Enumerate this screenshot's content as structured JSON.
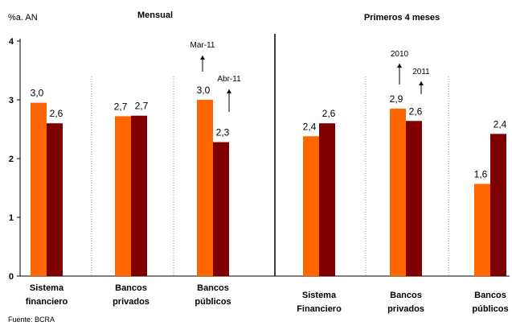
{
  "chart_data": {
    "type": "bar",
    "unit_label": "%a. AN",
    "source": "Fuente: BCRA",
    "ylim": [
      0,
      4
    ],
    "yticks": [
      "0",
      "1",
      "2",
      "3",
      "4"
    ],
    "colors": {
      "orange": "#ff6600",
      "dark": "#800000"
    },
    "panels": [
      {
        "title": "Mensual",
        "categories": [
          {
            "lines": [
              "Sistema",
              "financiero"
            ]
          },
          {
            "lines": [
              "Bancos",
              "privados"
            ]
          },
          {
            "lines": [
              "Bancos",
              "públicos"
            ]
          }
        ],
        "series": [
          {
            "name": "Mar-11",
            "values": [
              2.95,
              2.72,
              3.0
            ],
            "labels": [
              "3,0",
              "2,7",
              "3,0"
            ]
          },
          {
            "name": "Abr-11",
            "values": [
              2.6,
              2.73,
              2.28
            ],
            "labels": [
              "2,6",
              "2,7",
              "2,3"
            ]
          }
        ]
      },
      {
        "title": "Primeros 4 meses",
        "categories": [
          {
            "lines": [
              "Sistema",
              "Financiero"
            ]
          },
          {
            "lines": [
              "Bancos",
              "privados"
            ]
          },
          {
            "lines": [
              "Bancos",
              "públicos"
            ]
          }
        ],
        "series": [
          {
            "name": "2010",
            "values": [
              2.38,
              2.85,
              1.57
            ],
            "labels": [
              "2,4",
              "2,9",
              "1,6"
            ]
          },
          {
            "name": "2011",
            "values": [
              2.6,
              2.64,
              2.42
            ],
            "labels": [
              "2,6",
              "2,6",
              "2,4"
            ]
          }
        ]
      }
    ]
  }
}
